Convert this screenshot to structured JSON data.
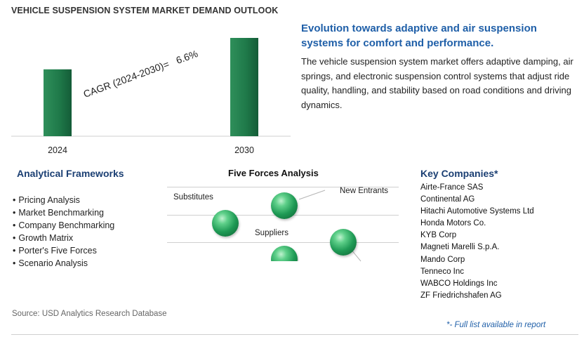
{
  "chart_data": {
    "type": "bar",
    "title": "VEHICLE SUSPENSION SYSTEM MARKET DEMAND OUTLOOK",
    "categories": [
      "2024",
      "2030"
    ],
    "values": [
      1.0,
      1.47
    ],
    "annotation": "CAGR (2024-2030)=   6.6%",
    "bar_color": "#1f7a4a"
  },
  "headline": "Evolution towards adaptive and air suspension systems for comfort and performance.",
  "description": "The vehicle suspension system market offers adaptive damping, air springs, and electronic suspension control systems that adjust ride quality, handling, and stability based on road conditions and driving dynamics.",
  "frameworks": {
    "title": "Analytical Frameworks",
    "items": [
      "Pricing Analysis",
      "Market Benchmarking",
      "Company Benchmarking",
      "Growth Matrix",
      "Porter's Five Forces",
      "Scenario Analysis"
    ]
  },
  "five_forces": {
    "title": "Five Forces Analysis",
    "labels": {
      "substitutes": "Substitutes",
      "new_entrants": "New Entrants",
      "suppliers": "Suppliers"
    }
  },
  "companies": {
    "title": "Key Companies*",
    "items": [
      "Airte-France SAS",
      "Continental AG",
      "Hitachi Automotive Systems Ltd",
      "Honda Motors Co.",
      "KYB Corp",
      "Magneti Marelli S.p.A.",
      "Mando Corp",
      "Tenneco Inc",
      "WABCO Holdings Inc",
      "ZF Friedrichshafen AG"
    ]
  },
  "source": "Source: USD Analytics Research Database",
  "footnote": "*- Full list available in report"
}
